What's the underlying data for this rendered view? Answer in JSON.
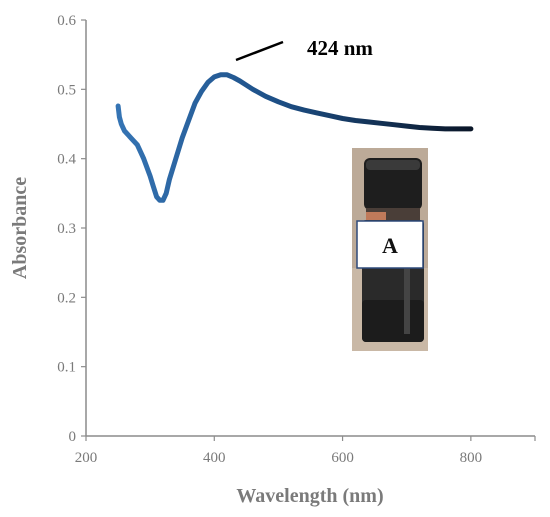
{
  "chart_data": {
    "type": "line",
    "title": "",
    "xlabel": "Wavelength  (nm)",
    "ylabel": "Absorbance",
    "xlim": [
      200,
      900
    ],
    "ylim": [
      0,
      0.6
    ],
    "x_ticks": [
      "200",
      "400",
      "600",
      "800"
    ],
    "y_ticks": [
      "0",
      "0.1",
      "0.2",
      "0.3",
      "0.4",
      "0.5",
      "0.6"
    ],
    "grid": false,
    "series": [
      {
        "x": [
          250,
          252,
          255,
          260,
          270,
          280,
          290,
          300,
          305,
          310,
          315,
          320,
          325,
          330,
          340,
          350,
          360,
          370,
          380,
          390,
          400,
          410,
          420,
          430,
          440,
          450,
          460,
          480,
          500,
          520,
          540,
          560,
          580,
          600,
          620,
          640,
          660,
          680,
          700,
          720,
          740,
          760,
          780,
          800
        ],
        "y": [
          0.476,
          0.46,
          0.45,
          0.44,
          0.43,
          0.42,
          0.4,
          0.375,
          0.36,
          0.345,
          0.34,
          0.34,
          0.35,
          0.37,
          0.4,
          0.43,
          0.455,
          0.48,
          0.497,
          0.51,
          0.518,
          0.521,
          0.521,
          0.517,
          0.512,
          0.506,
          0.5,
          0.49,
          0.482,
          0.475,
          0.47,
          0.466,
          0.462,
          0.458,
          0.455,
          0.453,
          0.451,
          0.449,
          0.447,
          0.445,
          0.444,
          0.443,
          0.443,
          0.443
        ]
      }
    ],
    "annotations": [
      {
        "text": "424 nm"
      }
    ],
    "inset": {
      "label": "A"
    },
    "colors": {
      "line": "#0d2a4a",
      "line_light": "#2f6aa8",
      "axis": "#8c8c8c"
    }
  }
}
